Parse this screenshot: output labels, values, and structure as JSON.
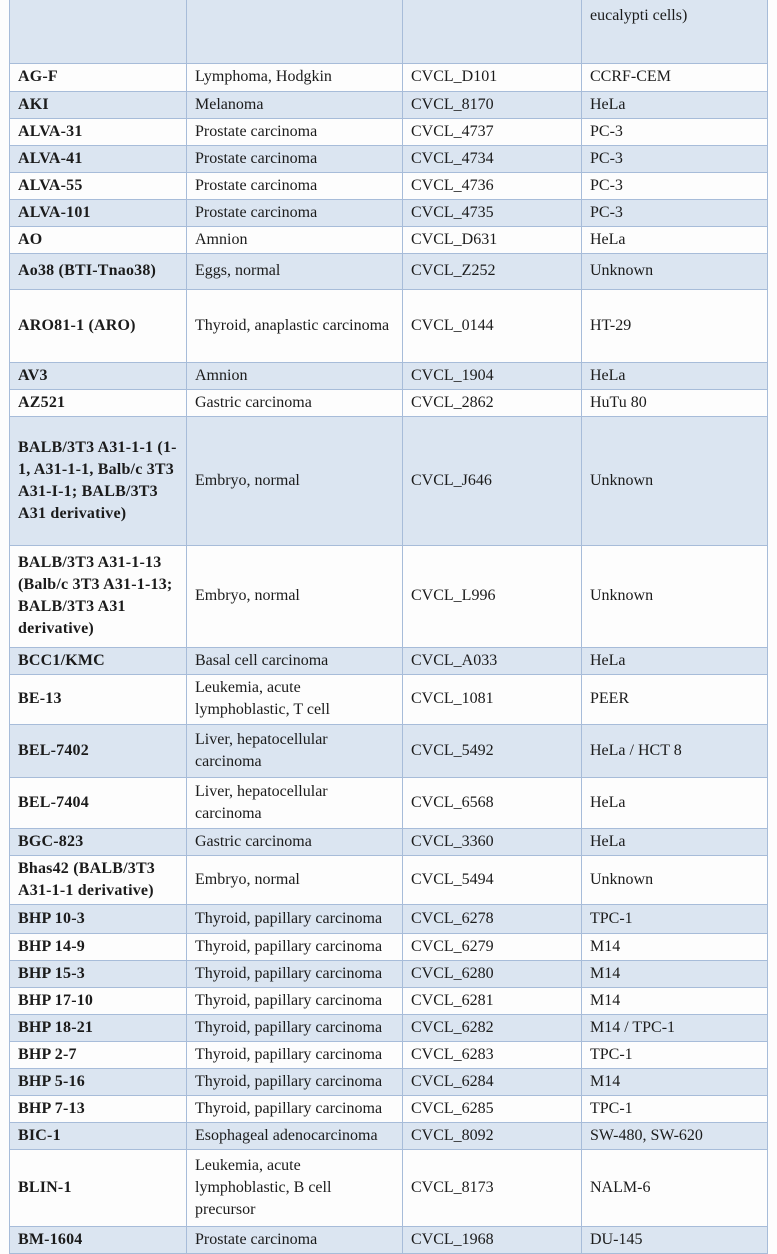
{
  "document": {
    "description_visible": "continuation page of a cell line cross-contamination table"
  },
  "colors": {
    "row_band": "#dbe5f1",
    "table_border": "#a7bcd9"
  },
  "table": {
    "rows": [
      {
        "continuation": true,
        "cells": [
          "",
          "",
          "",
          "eucalypti cells)"
        ]
      },
      {
        "cells": [
          "AG-F",
          "Lymphoma, Hodgkin",
          "CVCL_D101",
          "CCRF-CEM"
        ]
      },
      {
        "cells": [
          "AKI",
          "Melanoma",
          "CVCL_8170",
          "HeLa"
        ]
      },
      {
        "cells": [
          "ALVA-31",
          "Prostate carcinoma",
          "CVCL_4737",
          "PC-3"
        ]
      },
      {
        "cells": [
          "ALVA-41",
          "Prostate carcinoma",
          "CVCL_4734",
          "PC-3"
        ]
      },
      {
        "cells": [
          "ALVA-55",
          "Prostate carcinoma",
          "CVCL_4736",
          "PC-3"
        ]
      },
      {
        "cells": [
          "ALVA-101",
          "Prostate carcinoma",
          "CVCL_4735",
          "PC-3"
        ]
      },
      {
        "cells": [
          "AO",
          "Amnion",
          "CVCL_D631",
          "HeLa"
        ]
      },
      {
        "cells": [
          "Ao38 (BTI-Tnao38)",
          "Eggs, normal",
          "CVCL_Z252",
          "Unknown"
        ]
      },
      {
        "cells": [
          "ARO81-1 (ARO)",
          "Thyroid, anaplastic carcinoma",
          "CVCL_0144",
          "HT-29"
        ]
      },
      {
        "cells": [
          "AV3",
          "Amnion",
          "CVCL_1904",
          "HeLa"
        ]
      },
      {
        "cells": [
          "AZ521",
          "Gastric carcinoma",
          "CVCL_2862",
          "HuTu 80"
        ]
      },
      {
        "cells": [
          "BALB/3T3 A31-1-1 (1-1, A31-1-1, Balb/c 3T3 A31-I-1; BALB/3T3 A31 derivative)",
          "Embryo, normal",
          "CVCL_J646",
          "Unknown"
        ]
      },
      {
        "cells": [
          "BALB/3T3 A31-1-13 (Balb/c 3T3 A31-1-13; BALB/3T3 A31 derivative)",
          "Embryo, normal",
          "CVCL_L996",
          "Unknown"
        ]
      },
      {
        "cells": [
          "BCC1/KMC",
          "Basal cell carcinoma",
          "CVCL_A033",
          "HeLa"
        ]
      },
      {
        "cells": [
          "BE-13",
          "Leukemia, acute lymphoblastic, T cell",
          "CVCL_1081",
          "PEER"
        ]
      },
      {
        "cells": [
          "BEL-7402",
          "Liver, hepatocellular carcinoma",
          "CVCL_5492",
          "HeLa / HCT 8"
        ]
      },
      {
        "cells": [
          "BEL-7404",
          "Liver, hepatocellular carcinoma",
          "CVCL_6568",
          "HeLa"
        ]
      },
      {
        "cells": [
          "BGC-823",
          "Gastric carcinoma",
          "CVCL_3360",
          "HeLa"
        ]
      },
      {
        "cells": [
          "Bhas42 (BALB/3T3 A31-1-1 derivative)",
          "Embryo, normal",
          "CVCL_5494",
          "Unknown"
        ]
      },
      {
        "cells": [
          "BHP 10-3",
          "Thyroid, papillary carcinoma",
          "CVCL_6278",
          "TPC-1"
        ]
      },
      {
        "cells": [
          "BHP 14-9",
          "Thyroid, papillary carcinoma",
          "CVCL_6279",
          "M14"
        ]
      },
      {
        "cells": [
          "BHP 15-3",
          "Thyroid, papillary carcinoma",
          "CVCL_6280",
          "M14"
        ]
      },
      {
        "cells": [
          "BHP 17-10",
          "Thyroid, papillary carcinoma",
          "CVCL_6281",
          "M14"
        ]
      },
      {
        "cells": [
          "BHP 18-21",
          "Thyroid, papillary carcinoma",
          "CVCL_6282",
          "M14 / TPC-1"
        ]
      },
      {
        "cells": [
          "BHP 2-7",
          "Thyroid, papillary carcinoma",
          "CVCL_6283",
          "TPC-1"
        ]
      },
      {
        "cells": [
          "BHP 5-16",
          "Thyroid, papillary carcinoma",
          "CVCL_6284",
          "M14"
        ]
      },
      {
        "cells": [
          "BHP 7-13",
          "Thyroid, papillary carcinoma",
          "CVCL_6285",
          "TPC-1"
        ]
      },
      {
        "cells": [
          "BIC-1",
          "Esophageal adenocarcinoma",
          "CVCL_8092",
          "SW-480, SW-620"
        ]
      },
      {
        "cells": [
          "BLIN-1",
          "Leukemia, acute lymphoblastic, B cell precursor",
          "CVCL_8173",
          "NALM-6"
        ]
      },
      {
        "cells": [
          "BM-1604",
          "Prostate carcinoma",
          "CVCL_1968",
          "DU-145"
        ]
      }
    ]
  }
}
